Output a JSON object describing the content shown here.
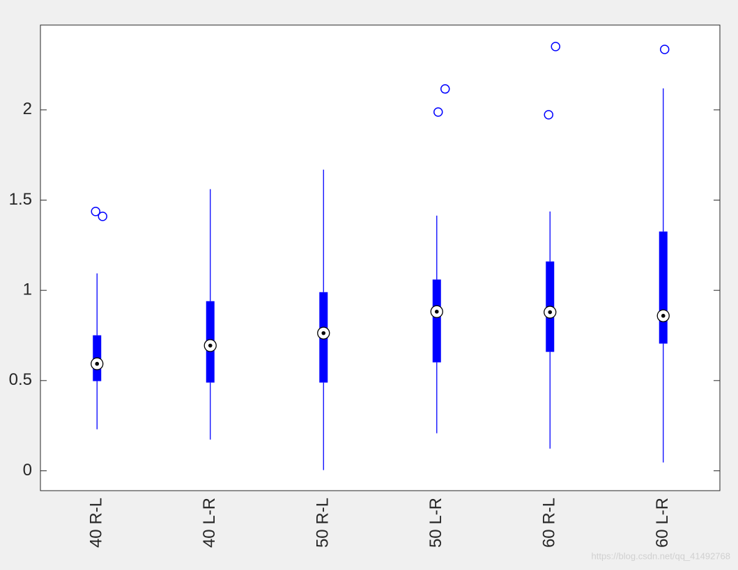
{
  "chart_data": {
    "type": "boxplot",
    "categories": [
      "40 R-L",
      "40 L-R",
      "50 R-L",
      "50 L-R",
      "60 R-L",
      "60 L-R"
    ],
    "color": "#0000ff",
    "boxes": [
      {
        "low": 0.23,
        "q1": 0.497,
        "median": 0.593,
        "q3": 0.751,
        "high": 1.094,
        "outliers": [
          1.437,
          1.41
        ]
      },
      {
        "low": 0.173,
        "q1": 0.489,
        "median": 0.694,
        "q3": 0.94,
        "high": 1.561,
        "outliers": []
      },
      {
        "low": 0.004,
        "q1": 0.489,
        "median": 0.763,
        "q3": 0.99,
        "high": 1.669,
        "outliers": []
      },
      {
        "low": 0.208,
        "q1": 0.601,
        "median": 0.882,
        "q3": 1.06,
        "high": 1.414,
        "outliers": [
          1.988,
          2.116
        ]
      },
      {
        "low": 0.123,
        "q1": 0.659,
        "median": 0.879,
        "q3": 1.16,
        "high": 1.437,
        "outliers": [
          1.973,
          2.351
        ]
      },
      {
        "low": 0.046,
        "q1": 0.705,
        "median": 0.859,
        "q3": 1.326,
        "high": 2.119,
        "outliers": [
          2.335
        ]
      }
    ],
    "ylim": [
      -0.11,
      2.47
    ],
    "yticks": [
      0,
      0.5,
      1,
      1.5,
      2
    ],
    "grid": false,
    "watermark": "https://blog.csdn.net/qq_41492768"
  }
}
